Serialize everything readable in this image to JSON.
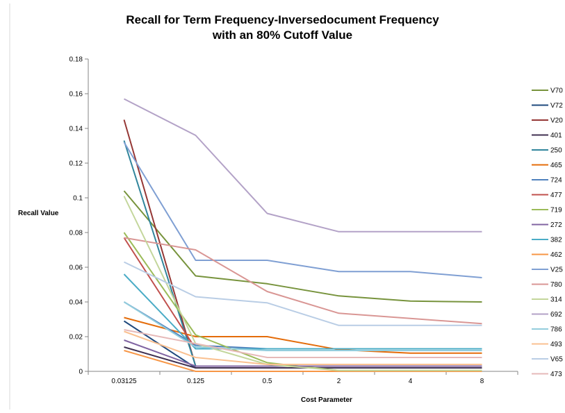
{
  "chart_data": {
    "type": "line",
    "title_line1": "Recall for Term Frequency-Inversedocument Frequency",
    "title_line2": "with an 80% Cutoff Value",
    "xlabel": "Cost Parameter",
    "ylabel": "Recall Value",
    "categories": [
      "0.03125",
      "0.125",
      "0.5",
      "2",
      "4",
      "8"
    ],
    "ylim": [
      0,
      0.18
    ],
    "yticks": [
      "0",
      "0.02",
      "0.04",
      "0.06",
      "0.08",
      "0.1",
      "0.12",
      "0.14",
      "0.16",
      "0.18"
    ],
    "grid": false,
    "legend_position": "right",
    "series": [
      {
        "name": "V70",
        "color": "#77933c",
        "values": [
          0.104,
          0.055,
          0.0505,
          0.0435,
          0.0405,
          0.04
        ]
      },
      {
        "name": "V72",
        "color": "#1f497d",
        "values": [
          0.029,
          0.002,
          0.002,
          0.002,
          0.002,
          0.002
        ]
      },
      {
        "name": "V20",
        "color": "#953735",
        "values": [
          0.145,
          0.003,
          0.003,
          0.003,
          0.003,
          0.003
        ]
      },
      {
        "name": "401",
        "color": "#403151",
        "values": [
          0.014,
          0.002,
          0.002,
          0.002,
          0.002,
          0.002
        ]
      },
      {
        "name": "250",
        "color": "#31859c",
        "values": [
          0.133,
          0.003,
          0.003,
          0.003,
          0.003,
          0.003
        ]
      },
      {
        "name": "465",
        "color": "#e46c0a",
        "values": [
          0.031,
          0.02,
          0.02,
          0.0125,
          0.0105,
          0.0105
        ]
      },
      {
        "name": "724",
        "color": "#4f81bd",
        "values": [
          0.04,
          0.015,
          0.013,
          0.013,
          0.013,
          0.013
        ]
      },
      {
        "name": "477",
        "color": "#c0504d",
        "values": [
          0.077,
          0.013,
          0.013,
          0.013,
          0.013,
          0.013
        ]
      },
      {
        "name": "719",
        "color": "#9bbb59",
        "values": [
          0.08,
          0.021,
          0.005,
          0.0005,
          0.0005,
          0.0005
        ]
      },
      {
        "name": "272",
        "color": "#8064a2",
        "values": [
          0.018,
          0.003,
          0.003,
          0.003,
          0.003,
          0.003
        ]
      },
      {
        "name": "382",
        "color": "#4bacc6",
        "values": [
          0.056,
          0.013,
          0.013,
          0.013,
          0.013,
          0.013
        ]
      },
      {
        "name": "462",
        "color": "#f79646",
        "values": [
          0.012,
          0.0,
          0.0,
          0.0,
          0.0,
          0.0
        ]
      },
      {
        "name": "V25",
        "color": "#7f9fd3",
        "values": [
          0.132,
          0.064,
          0.064,
          0.0575,
          0.0575,
          0.054
        ]
      },
      {
        "name": "780",
        "color": "#d99694",
        "values": [
          0.077,
          0.07,
          0.046,
          0.0335,
          0.0305,
          0.0275
        ]
      },
      {
        "name": "314",
        "color": "#c3d69b",
        "values": [
          0.101,
          0.016,
          0.004,
          0.0005,
          0.0005,
          0.0005
        ]
      },
      {
        "name": "692",
        "color": "#b3a2c7",
        "values": [
          0.157,
          0.136,
          0.091,
          0.0805,
          0.0805,
          0.0805
        ]
      },
      {
        "name": "786",
        "color": "#93cddd",
        "values": [
          0.04,
          0.014,
          0.012,
          0.012,
          0.012,
          0.012
        ]
      },
      {
        "name": "493",
        "color": "#fac090",
        "values": [
          0.023,
          0.008,
          0.004,
          0.004,
          0.004,
          0.004
        ]
      },
      {
        "name": "V65",
        "color": "#b9cde5",
        "values": [
          0.063,
          0.043,
          0.0395,
          0.0265,
          0.0265,
          0.0265
        ]
      },
      {
        "name": "473",
        "color": "#e6b9b8",
        "values": [
          0.024,
          0.016,
          0.008,
          0.008,
          0.008,
          0.008
        ]
      }
    ]
  }
}
